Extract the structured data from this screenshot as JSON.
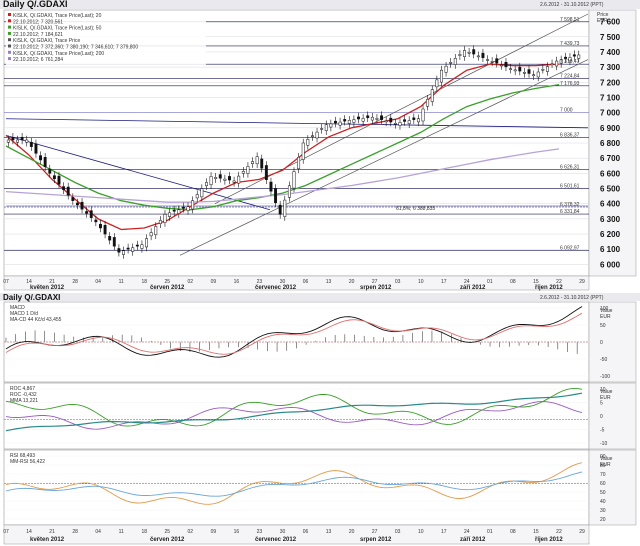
{
  "header": {
    "title": "Daily Q/.GDAXI",
    "range": "2.6.2012 - 31.10.2012 (PPT)"
  },
  "lower_header": {
    "title": "Daily Q/.GDAXI",
    "range": "2.6.2012 - 31.10.2012 (PPT)"
  },
  "price_axis": {
    "label": "Price",
    "unit": "EUR",
    "ticks": [
      "7 600",
      "7 500",
      "7 400",
      "7 300",
      "7 200",
      "7 100",
      "7 000",
      "6 900",
      "6 800",
      "6 700",
      "6 600",
      "6 500",
      "6 400",
      "6 300",
      "6 200",
      "6 100",
      "6 000"
    ],
    "markers": [
      "7 598,51",
      "7 439,73",
      "7 319,47",
      "7 224,84",
      "7 176,93",
      "7 000",
      "6 836,37",
      "6 626,31",
      "6 501,61",
      "6 378,32",
      "6 331,84",
      "6 092,97"
    ]
  },
  "legend_main": [
    {
      "text": "KISLK, Q/.GDAXI, Trace Price(Last); 20",
      "color": "#cc2222"
    },
    {
      "text": "22.10.2012; 7 320,561",
      "color": "#cc2222"
    },
    {
      "text": "KISLK, Q/.GDAXI, Trace Price(Last); 50",
      "color": "#3aa02a"
    },
    {
      "text": "22.10.2012; 7 184,621",
      "color": "#3aa02a"
    },
    {
      "text": "KISLK, Q/.GDAXI, Trace Price",
      "color": "#555555"
    },
    {
      "text": "22.10.2012; 7 372,360; 7 380,190; 7 346,610; 7 379,800",
      "color": "#555555"
    },
    {
      "text": "KISLK, Q/.GDAXI, Trace Price(Last); 200",
      "color": "#9b7fc0"
    },
    {
      "text": "22.10.2012; 6 761,284",
      "color": "#9b7fc0"
    }
  ],
  "fib_labels": [
    "61,8%; 6 388,835"
  ],
  "x_axis": {
    "day_ticks": [
      "07",
      "14",
      "21",
      "28",
      "04",
      "11",
      "18",
      "25",
      "02",
      "09",
      "16",
      "23",
      "30",
      "06",
      "13",
      "20",
      "27",
      "03",
      "10",
      "17",
      "24",
      "01",
      "08",
      "15",
      "22",
      "29"
    ],
    "months": [
      "květen 2012",
      "červen 2012",
      "červenec 2012",
      "srpen 2012",
      "září 2012",
      "říjen 2012"
    ]
  },
  "macd": {
    "legend": [
      "MACD",
      "MACD 1 D/d",
      "MA-CD 44 Kč/d 43,455"
    ],
    "axis_label": "Value",
    "axis_unit": "EUR",
    "ticks": [
      "100",
      "50",
      "0",
      "-50",
      "-100"
    ]
  },
  "roc": {
    "legend": [
      "ROC 4,867",
      "ROC -0,432",
      "MMA 13,221"
    ],
    "axis_label": "Value",
    "axis_unit": "EUR",
    "ticks": [
      "10",
      "5",
      "0",
      "-5",
      "-10"
    ]
  },
  "rsi": {
    "legend": [
      "RSI 68,493",
      "MM-RSI 56,422"
    ],
    "axis_label": "Value",
    "axis_unit": "EUR",
    "ticks": [
      "90",
      "80",
      "70",
      "60",
      "50",
      "40",
      "30",
      "20"
    ]
  },
  "colors": {
    "price_bars": "#111111",
    "ma20": "#cc2222",
    "ma50": "#3aa02a",
    "ma200": "#b6a3d6",
    "trendline": "#1a1a7a",
    "macd": "#111111",
    "macd_signal": "#e07070",
    "roc": "#3aa02a",
    "roc_ma": "#9b5cc0",
    "rsi": "#e59a4a",
    "rsi_ma": "#6aa6d6"
  },
  "chart_data": {
    "type": "line",
    "title": "Daily Q/.GDAXI",
    "x_range": [
      "2012-05-07",
      "2012-10-29"
    ],
    "ylim": [
      5950,
      7650
    ],
    "ylabel": "Price EUR",
    "series": [
      {
        "name": "KISLK, Q/.GDAXI, Trace Price",
        "type": "ohlc",
        "x": [
          "2012-05-07",
          "2012-05-14",
          "2012-05-21",
          "2012-05-28",
          "2012-06-04",
          "2012-06-11",
          "2012-06-18",
          "2012-06-25",
          "2012-07-02",
          "2012-07-09",
          "2012-07-16",
          "2012-07-23",
          "2012-07-30",
          "2012-08-06",
          "2012-08-13",
          "2012-08-20",
          "2012-08-27",
          "2012-09-03",
          "2012-09-10",
          "2012-09-17",
          "2012-09-24",
          "2012-10-01",
          "2012-10-08",
          "2012-10-15",
          "2012-10-22"
        ],
        "values": [
          6820,
          6600,
          6420,
          6280,
          6080,
          6130,
          6330,
          6380,
          6580,
          6550,
          6710,
          6330,
          6800,
          6920,
          6950,
          6970,
          6930,
          6960,
          7280,
          7410,
          7350,
          7290,
          7250,
          7340,
          7380
        ]
      },
      {
        "name": "KISLK, Q/.GDAXI, Trace Price(Last); 20",
        "values": [
          6850,
          6720,
          6560,
          6430,
          6300,
          6230,
          6240,
          6290,
          6380,
          6470,
          6540,
          6560,
          6620,
          6740,
          6840,
          6900,
          6930,
          6960,
          7040,
          7180,
          7280,
          7320,
          7310,
          7310,
          7320
        ]
      },
      {
        "name": "KISLK, Q/.GDAXI, Trace Price(Last); 50",
        "values": [
          6780,
          6700,
          6620,
          6540,
          6470,
          6420,
          6390,
          6370,
          6360,
          6380,
          6420,
          6440,
          6470,
          6520,
          6590,
          6660,
          6730,
          6800,
          6870,
          6960,
          7040,
          7090,
          7130,
          7160,
          7185
        ]
      },
      {
        "name": "KISLK, Q/.GDAXI, Trace Price(Last); 200",
        "values": [
          6480,
          6470,
          6460,
          6450,
          6440,
          6430,
          6420,
          6410,
          6410,
          6415,
          6430,
          6445,
          6460,
          6480,
          6500,
          6520,
          6545,
          6570,
          6600,
          6630,
          6660,
          6690,
          6715,
          6740,
          6761
        ]
      }
    ]
  }
}
